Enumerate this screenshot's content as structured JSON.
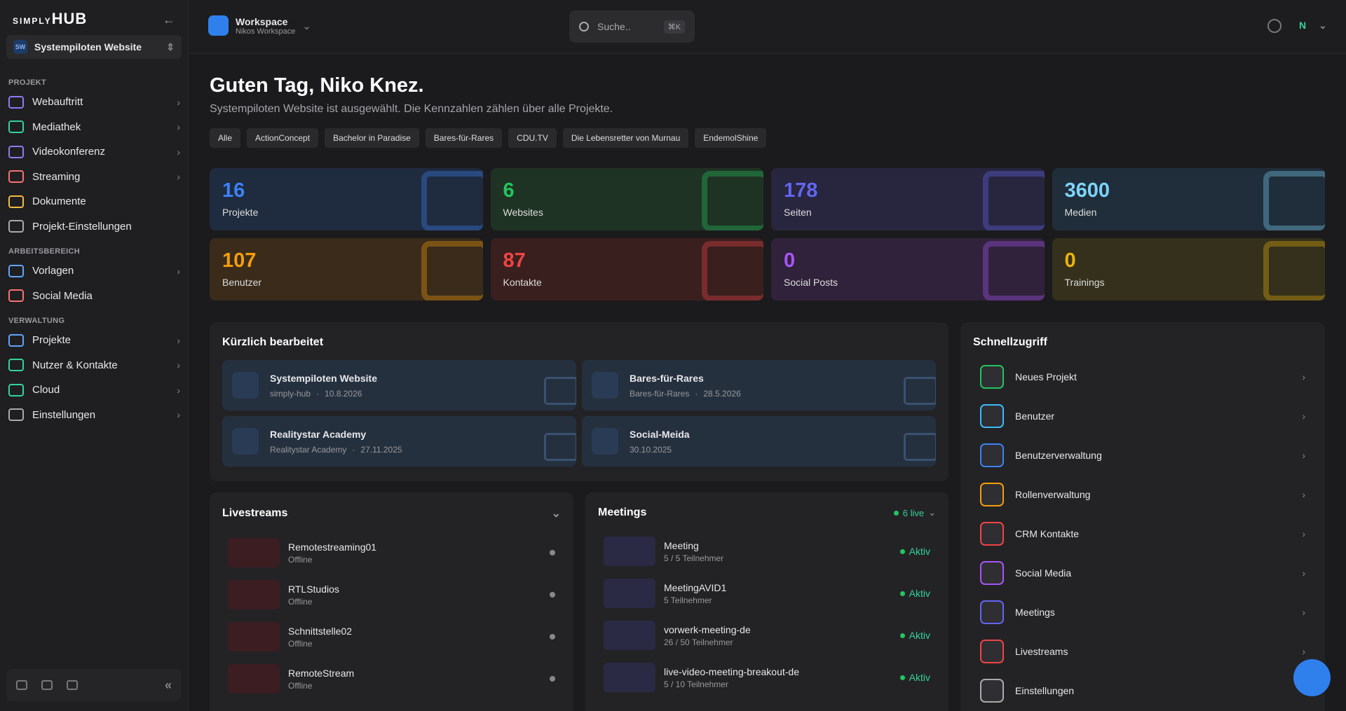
{
  "sidebar": {
    "logo_top": "SIMPLY",
    "logo_bottom": "HUB",
    "project": {
      "badge": "SW",
      "name": "Systempiloten Website"
    },
    "sections": [
      {
        "title": "PROJEKT",
        "items": [
          {
            "label": "Webauftritt",
            "color": "#8b7cf6",
            "chevron": true
          },
          {
            "label": "Mediathek",
            "color": "#34d399",
            "chevron": true
          },
          {
            "label": "Videokonferenz",
            "color": "#8b7cf6",
            "chevron": true
          },
          {
            "label": "Streaming",
            "color": "#f87171",
            "chevron": true
          },
          {
            "label": "Dokumente",
            "color": "#f5b942",
            "chevron": false
          },
          {
            "label": "Projekt-Einstellungen",
            "color": "#aaaaaa",
            "chevron": false
          }
        ]
      },
      {
        "title": "ARBEITSBEREICH",
        "items": [
          {
            "label": "Vorlagen",
            "color": "#60a5fa",
            "chevron": true
          },
          {
            "label": "Social Media",
            "color": "#f87171",
            "chevron": false
          }
        ]
      },
      {
        "title": "VERWALTUNG",
        "items": [
          {
            "label": "Projekte",
            "color": "#60a5fa",
            "chevron": true
          },
          {
            "label": "Nutzer & Kontakte",
            "color": "#34d399",
            "chevron": true
          },
          {
            "label": "Cloud",
            "color": "#34d399",
            "chevron": true
          },
          {
            "label": "Einstellungen",
            "color": "#aaaaaa",
            "chevron": true
          }
        ]
      }
    ]
  },
  "topbar": {
    "workspace": "Workspace",
    "workspace_name": "Nikos Workspace",
    "search": "Suche..",
    "shortcut": "⌘K",
    "user": "N"
  },
  "greeting": {
    "title": "Guten Tag, Niko Knez.",
    "subtitle": "Systempiloten Website ist ausgewählt. Die Kennzahlen zählen über alle Projekte.",
    "filters": [
      "Alle",
      "ActionConcept",
      "Bachelor in Paradise",
      "Bares-für-Rares",
      "CDU.TV",
      "Die Lebensretter von Murnau",
      "EndemolShine"
    ]
  },
  "stats": [
    {
      "value": 16,
      "label": "Projekte",
      "color": "#3b82f6",
      "bg": "#1f2b3f"
    },
    {
      "value": 6,
      "label": "Websites",
      "color": "#22c55e",
      "bg": "#1f3324"
    },
    {
      "value": 178,
      "label": "Seiten",
      "color": "#6366f1",
      "bg": "#28253f"
    },
    {
      "value": 3600,
      "label": "Medien",
      "color": "#7dd3fc",
      "bg": "#1f2e3a"
    },
    {
      "value": 107,
      "label": "Benutzer",
      "color": "#f59e0b",
      "bg": "#3a2b1b"
    },
    {
      "value": 87,
      "label": "Kontakte",
      "color": "#ef4444",
      "bg": "#3a1f1f"
    },
    {
      "value": 0,
      "label": "Social Posts",
      "color": "#a855f7",
      "bg": "#31223b"
    },
    {
      "value": 0,
      "label": "Trainings",
      "color": "#eab308",
      "bg": "#34301b"
    }
  ],
  "recent": {
    "title": "Kürzlich bearbeitet",
    "items": [
      {
        "name": "Systempiloten Website",
        "meta": "simply-hub",
        "date": "10.8.2026"
      },
      {
        "name": "Bares-für-Rares",
        "meta": "Bares-für-Rares",
        "date": "28.5.2026"
      },
      {
        "name": "Realitystar Academy",
        "meta": "Realitystar Academy",
        "date": "27.11.2025"
      },
      {
        "name": "Social-Meida",
        "date": "30.10.2025"
      }
    ]
  },
  "livestreams": {
    "title": "Livestreams",
    "items": [
      {
        "name": "Remotestreaming01",
        "status": "Offline"
      },
      {
        "name": "RTLStudios",
        "status": "Offline"
      },
      {
        "name": "Schnittstelle02",
        "status": "Offline"
      },
      {
        "name": "RemoteStream",
        "status": "Offline"
      }
    ]
  },
  "meetings": {
    "title": "Meetings",
    "live": "6 live",
    "items": [
      {
        "name": "Meeting",
        "participants": "5 / 5 Teilnehmer",
        "status": "Aktiv"
      },
      {
        "name": "MeetingAVID1",
        "participants": "5 Teilnehmer",
        "status": "Aktiv"
      },
      {
        "name": "vorwerk-meeting-de",
        "participants": "26 / 50 Teilnehmer",
        "status": "Aktiv"
      },
      {
        "name": "live-video-meeting-breakout-de",
        "participants": "5 / 10 Teilnehmer",
        "status": "Aktiv"
      }
    ]
  },
  "quick": {
    "title": "Schnellzugriff",
    "items": [
      {
        "label": "Neues Projekt",
        "color": "#22c55e"
      },
      {
        "label": "Benutzer",
        "color": "#38bdf8"
      },
      {
        "label": "Benutzerverwaltung",
        "color": "#3b82f6"
      },
      {
        "label": "Rollenverwaltung",
        "color": "#f59e0b"
      },
      {
        "label": "CRM Kontakte",
        "color": "#ef4444"
      },
      {
        "label": "Social Media",
        "color": "#a855f7"
      },
      {
        "label": "Meetings",
        "color": "#6366f1"
      },
      {
        "label": "Livestreams",
        "color": "#ef4444"
      },
      {
        "label": "Einstellungen",
        "color": "#aaaaaa"
      }
    ]
  }
}
